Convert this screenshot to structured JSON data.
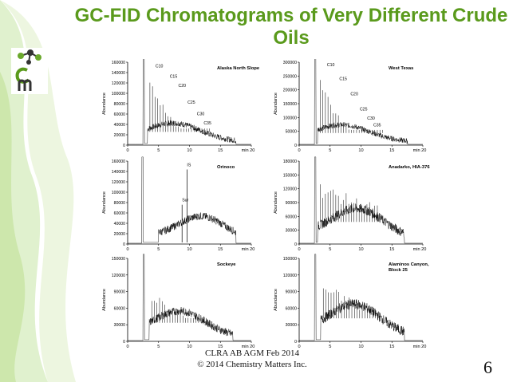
{
  "slide": {
    "title_line1": "GC-FID Chromatograms of Very Different Crude",
    "title_line2": "Oils",
    "footer_line1": "CLRA AB AGM Feb 2014",
    "footer_line2": "© 2014 Chemistry Matters Inc.",
    "page_number": "6",
    "accent_color": "#5a9a1c",
    "logo_icon": "chemistry-matters-logo-icon"
  },
  "chart_data": [
    {
      "type": "line",
      "title": "Alaska North Slope",
      "ylabel": "Abundance",
      "xlim": [
        0,
        20
      ],
      "ylim": [
        0,
        160000
      ],
      "yticks": [
        0,
        20000,
        40000,
        60000,
        80000,
        100000,
        120000,
        140000,
        160000
      ],
      "xticks": [
        "0",
        "5",
        "10",
        "15",
        "min 20"
      ],
      "annotations": [
        {
          "label": "C10",
          "x": 4.5,
          "y": 150000
        },
        {
          "label": "C15",
          "x": 6.8,
          "y": 130000
        },
        {
          "label": "C20",
          "x": 8.2,
          "y": 112000
        },
        {
          "label": "C25",
          "x": 9.7,
          "y": 80000
        },
        {
          "label": "C30",
          "x": 11.2,
          "y": 58000
        },
        {
          "label": "C35",
          "x": 12.3,
          "y": 40000
        }
      ],
      "profile": {
        "solvent_peak_min": 2.6,
        "start_min": 3.2,
        "end_min": 17.5,
        "hump_height": 32000,
        "hump_center_min": 7.5,
        "alkane_peak_max": 155000,
        "alkane_peak_decay": 0.88
      }
    },
    {
      "type": "line",
      "title": "West Texas",
      "ylabel": "Abundance",
      "xlim": [
        0,
        20
      ],
      "ylim": [
        0,
        300000
      ],
      "yticks": [
        0,
        50000,
        100000,
        150000,
        200000,
        250000,
        300000
      ],
      "xticks": [
        "0",
        "5",
        "10",
        "15",
        "min 20"
      ],
      "annotations": [
        {
          "label": "C10",
          "x": 4.5,
          "y": 285000
        },
        {
          "label": "C15",
          "x": 6.5,
          "y": 235000
        },
        {
          "label": "C20",
          "x": 8.3,
          "y": 180000
        },
        {
          "label": "C25",
          "x": 9.8,
          "y": 125000
        },
        {
          "label": "C30",
          "x": 11.0,
          "y": 92000
        },
        {
          "label": "C35",
          "x": 12.0,
          "y": 68000
        }
      ],
      "profile": {
        "solvent_peak_min": 2.6,
        "start_min": 3.0,
        "end_min": 17.5,
        "hump_height": 55000,
        "hump_center_min": 7.0,
        "alkane_peak_max": 290000,
        "alkane_peak_decay": 0.87
      }
    },
    {
      "type": "line",
      "title": "Orinoco",
      "ylabel": "Abundance",
      "xlim": [
        0,
        20
      ],
      "ylim": [
        0,
        160000
      ],
      "yticks": [
        0,
        20000,
        40000,
        60000,
        80000,
        100000,
        120000,
        140000,
        160000
      ],
      "xticks": [
        "0",
        "5",
        "10",
        "15",
        "min 20"
      ],
      "annotations": [
        {
          "label": "IS",
          "x": 9.6,
          "y": 150000
        },
        {
          "label": "Sur",
          "x": 8.8,
          "y": 82000
        }
      ],
      "profile": {
        "solvent_peak_min": 2.4,
        "start_min": 5.0,
        "end_min": 17.5,
        "hump_height": 42000,
        "hump_center_min": 12.0,
        "alkane_peak_max": 0,
        "alkane_peak_decay": 0
      }
    },
    {
      "type": "line",
      "title": "Anadarko, HIA-376",
      "ylabel": "Abundance",
      "xlim": [
        0,
        20
      ],
      "ylim": [
        0,
        180000
      ],
      "yticks": [
        0,
        30000,
        60000,
        90000,
        120000,
        150000,
        180000
      ],
      "xticks": [
        "0",
        "5",
        "10",
        "15",
        "min 20"
      ],
      "annotations": [],
      "profile": {
        "solvent_peak_min": 2.6,
        "start_min": 3.0,
        "end_min": 17.0,
        "hump_height": 60000,
        "hump_center_min": 9.5,
        "alkane_peak_max": 135000,
        "alkane_peak_decay": 0.98
      }
    },
    {
      "type": "line",
      "title": "Sockeye",
      "ylabel": "Abundance",
      "xlim": [
        0,
        20
      ],
      "ylim": [
        0,
        150000
      ],
      "yticks": [
        0,
        30000,
        60000,
        90000,
        120000,
        150000
      ],
      "xticks": [
        "0",
        "5",
        "10",
        "15",
        "min 20"
      ],
      "annotations": [],
      "profile": {
        "solvent_peak_min": 2.6,
        "start_min": 3.5,
        "end_min": 17.0,
        "hump_height": 42000,
        "hump_center_min": 8.5,
        "alkane_peak_max": 90000,
        "alkane_peak_decay": 0.96
      }
    },
    {
      "type": "line",
      "title": "Alaminos Canyon, Block 25",
      "ylabel": "Abundance",
      "xlim": [
        0,
        20
      ],
      "ylim": [
        0,
        150000
      ],
      "yticks": [
        0,
        30000,
        60000,
        90000,
        120000,
        150000
      ],
      "xticks": [
        "0",
        "5",
        "10",
        "15",
        "min 20"
      ],
      "annotations": [],
      "profile": {
        "solvent_peak_min": 2.6,
        "start_min": 3.5,
        "end_min": 17.0,
        "hump_height": 52000,
        "hump_center_min": 9.0,
        "alkane_peak_max": 110000,
        "alkane_peak_decay": 0.97
      }
    }
  ]
}
